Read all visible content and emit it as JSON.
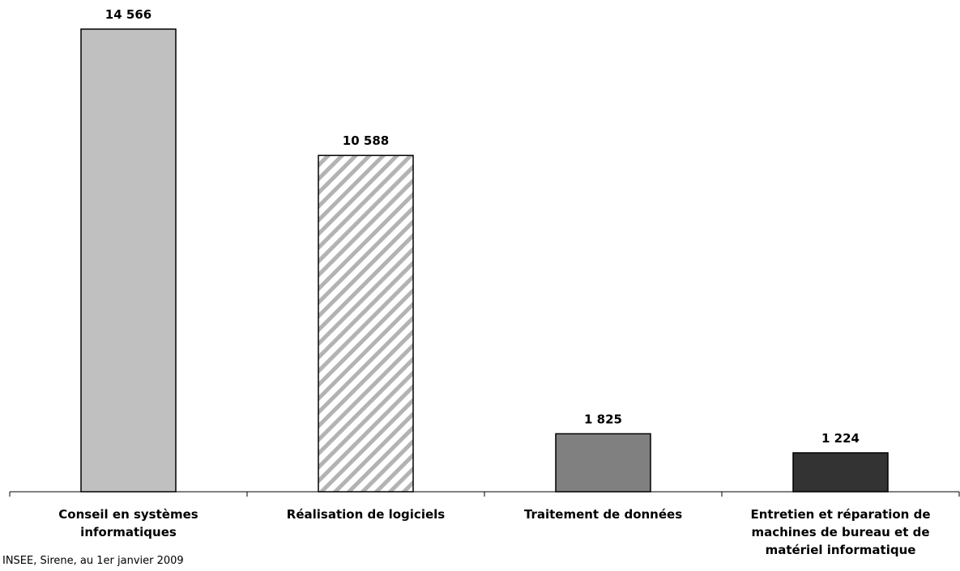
{
  "chart_data": {
    "type": "bar",
    "categories": [
      [
        "Conseil en systèmes",
        "informatiques"
      ],
      [
        "Réalisation de logiciels"
      ],
      [
        "Traitement de données"
      ],
      [
        "Entretien et réparation de",
        "machines de bureau et de",
        "matériel informatique"
      ]
    ],
    "values": [
      14566,
      10588,
      1825,
      1224
    ],
    "value_labels": [
      "14 566",
      "10 588",
      "1 825",
      "1 224"
    ],
    "bar_styles": [
      {
        "fill": "#c0c0c0",
        "pattern": "none"
      },
      {
        "fill": "#ffffff",
        "pattern": "diagonal-hatch",
        "hatch_color": "#b3b3b3"
      },
      {
        "fill": "#808080",
        "pattern": "none"
      },
      {
        "fill": "#333333",
        "pattern": "none"
      }
    ],
    "ylim": [
      0,
      14566
    ],
    "grid": false,
    "legend": "none"
  },
  "source": "INSEE, Sirene, au 1er janvier 2009"
}
